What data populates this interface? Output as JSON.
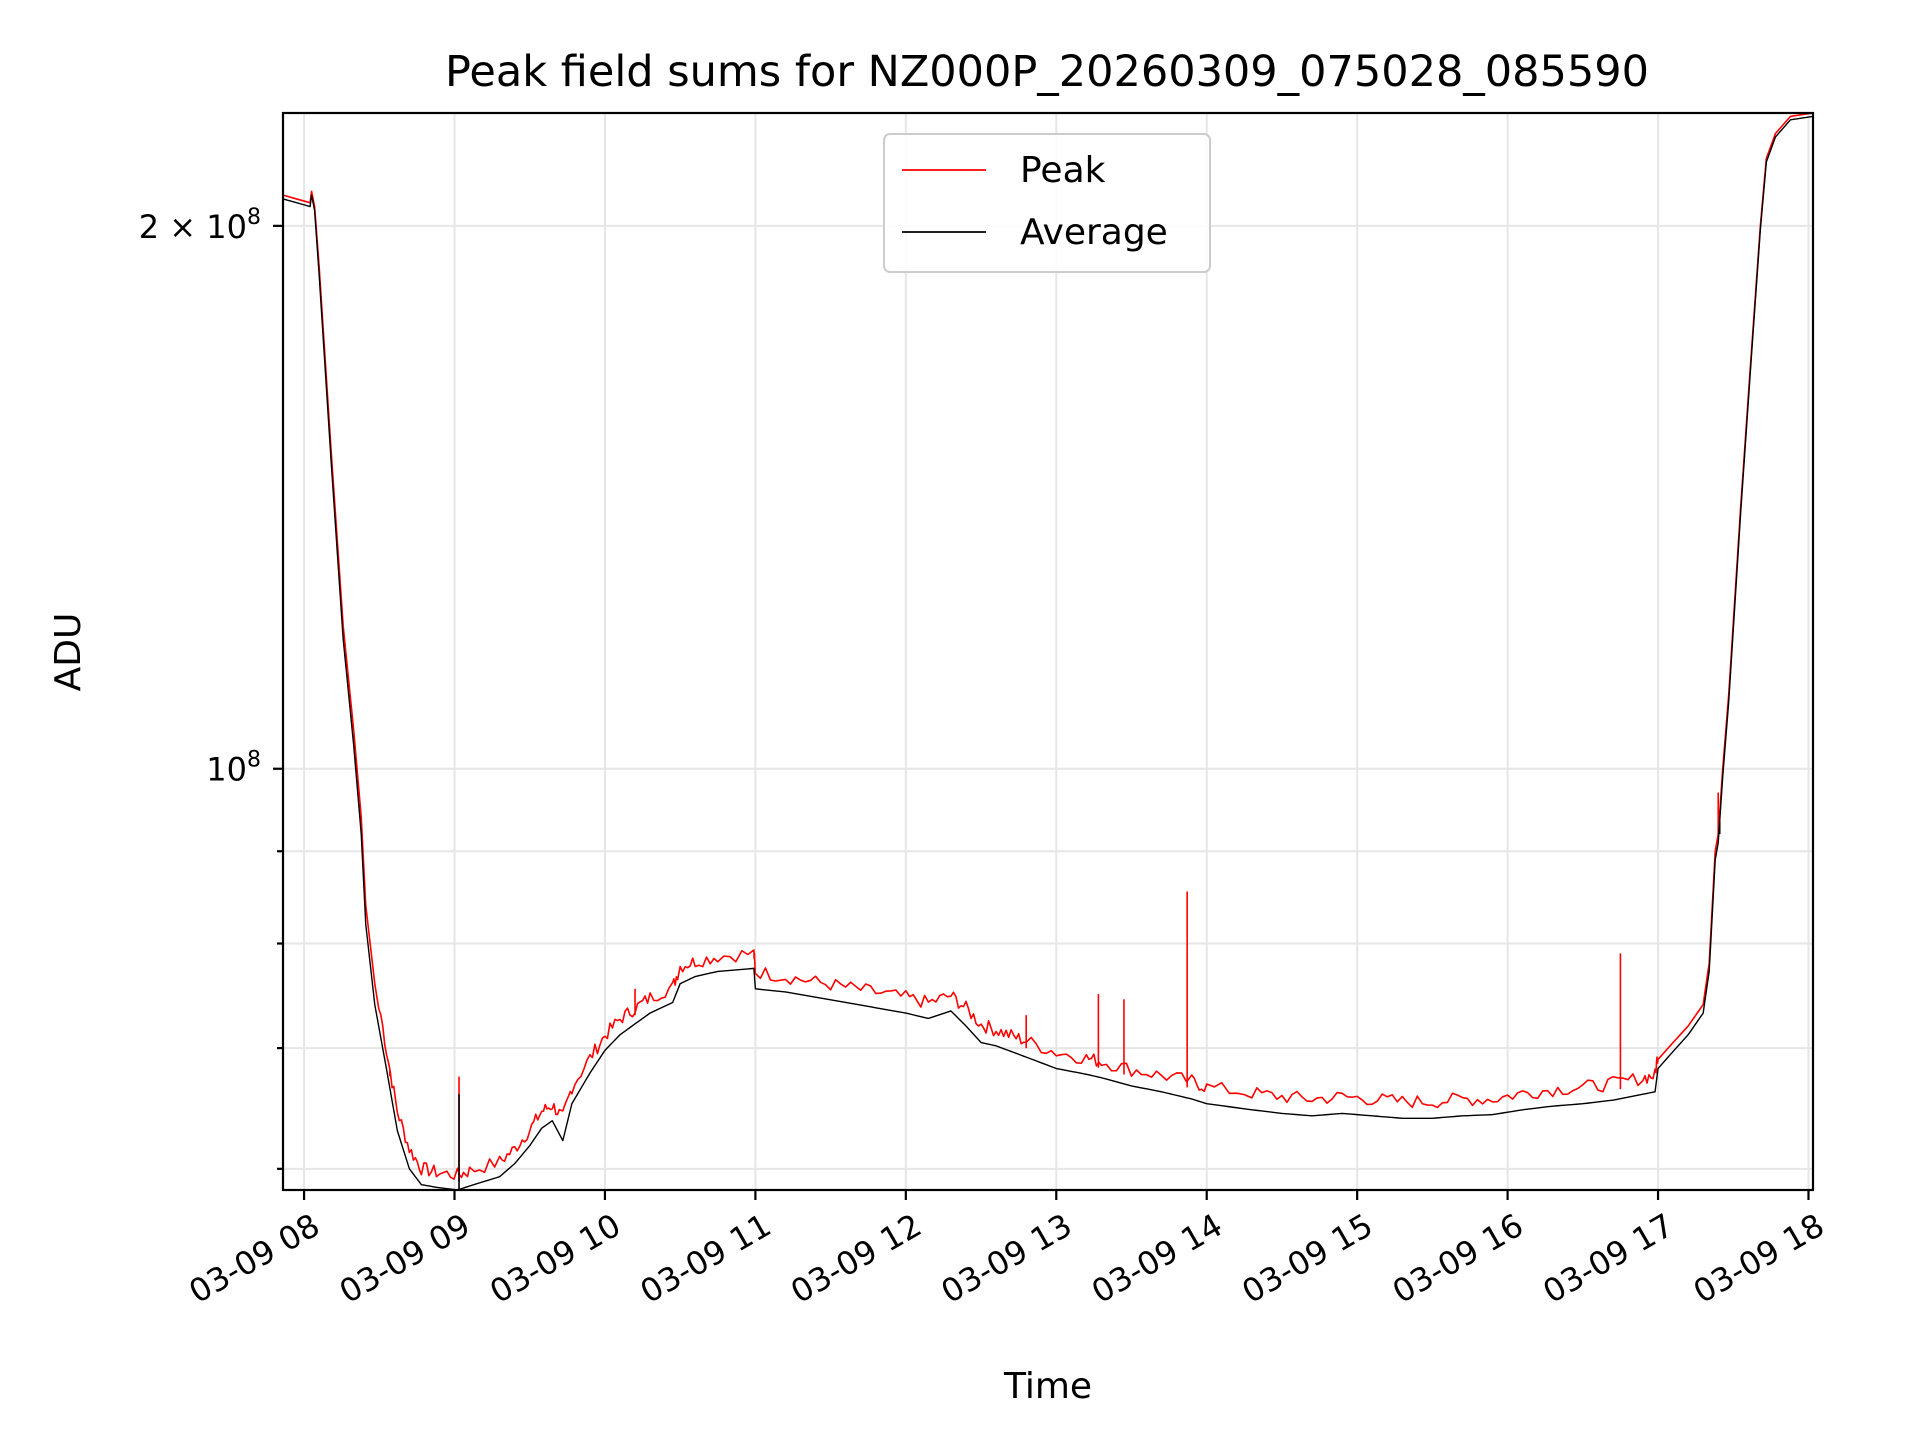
{
  "chart_data": {
    "type": "line",
    "title": "Peak field sums for NZ000P_20260309_075028_085590",
    "xlabel": "Time",
    "ylabel": "ADU",
    "y_scale": "log",
    "ylim": [
      58400000,
      231000000
    ],
    "xlim_hours": [
      7.86,
      18.03
    ],
    "x_ticks": [
      {
        "hour": 8,
        "label": "03-09 08"
      },
      {
        "hour": 9,
        "label": "03-09 09"
      },
      {
        "hour": 10,
        "label": "03-09 10"
      },
      {
        "hour": 11,
        "label": "03-09 11"
      },
      {
        "hour": 12,
        "label": "03-09 12"
      },
      {
        "hour": 13,
        "label": "03-09 13"
      },
      {
        "hour": 14,
        "label": "03-09 14"
      },
      {
        "hour": 15,
        "label": "03-09 15"
      },
      {
        "hour": 16,
        "label": "03-09 16"
      },
      {
        "hour": 17,
        "label": "03-09 17"
      },
      {
        "hour": 18,
        "label": "03-09 18"
      }
    ],
    "y_major_ticks": [
      {
        "value": 100000000,
        "base": "10",
        "exp": "8",
        "mant": ""
      },
      {
        "value": 200000000,
        "base": "10",
        "exp": "8",
        "mant": "2 × "
      }
    ],
    "y_minor_ticks": [
      60000000,
      70000000,
      80000000,
      90000000
    ],
    "legend": {
      "location": "upper center",
      "entries": [
        "Peak",
        "Average"
      ]
    },
    "series": [
      {
        "name": "Peak",
        "color": "#ff0000",
        "points": [
          [
            7.86,
            208000000
          ],
          [
            8.04,
            206000000
          ],
          [
            8.05,
            209000000
          ],
          [
            8.07,
            205000000
          ],
          [
            8.1,
            190000000
          ],
          [
            8.18,
            150000000
          ],
          [
            8.26,
            120000000
          ],
          [
            8.33,
            105000000
          ],
          [
            8.38,
            94000000
          ],
          [
            8.41,
            84000000
          ],
          [
            8.47,
            76000000
          ],
          [
            8.55,
            69000000
          ],
          [
            8.62,
            64000000
          ],
          [
            8.7,
            61000000
          ],
          [
            8.78,
            59500000
          ],
          [
            8.88,
            59200000
          ],
          [
            9.02,
            59000000
          ],
          [
            9.1,
            59300000
          ],
          [
            9.3,
            60000000
          ],
          [
            9.4,
            61000000
          ],
          [
            9.5,
            62500000
          ],
          [
            9.58,
            64000000
          ],
          [
            9.65,
            64500000
          ],
          [
            9.72,
            63500000
          ],
          [
            9.78,
            66000000
          ],
          [
            9.9,
            68500000
          ],
          [
            10.0,
            70500000
          ],
          [
            10.1,
            72000000
          ],
          [
            10.2,
            73000000
          ],
          [
            10.3,
            74000000
          ],
          [
            10.45,
            75000000
          ],
          [
            10.5,
            77000000
          ],
          [
            10.6,
            77500000
          ],
          [
            10.75,
            78000000
          ],
          [
            10.99,
            78300000
          ],
          [
            11.0,
            76500000
          ],
          [
            11.2,
            76000000
          ],
          [
            11.4,
            75500000
          ],
          [
            11.6,
            75000000
          ],
          [
            11.8,
            74500000
          ],
          [
            12.0,
            74000000
          ],
          [
            12.15,
            73500000
          ],
          [
            12.3,
            74200000
          ],
          [
            12.4,
            73000000
          ],
          [
            12.5,
            71500000
          ],
          [
            12.6,
            71000000
          ],
          [
            12.7,
            70500000
          ],
          [
            12.8,
            70000000
          ],
          [
            13.0,
            69000000
          ],
          [
            13.2,
            68500000
          ],
          [
            13.3,
            68200000
          ],
          [
            13.5,
            67500000
          ],
          [
            13.7,
            67000000
          ],
          [
            13.9,
            66500000
          ],
          [
            14.0,
            66000000
          ],
          [
            14.3,
            65500000
          ],
          [
            14.5,
            65200000
          ],
          [
            14.7,
            65000000
          ],
          [
            14.9,
            65200000
          ],
          [
            15.1,
            65000000
          ],
          [
            15.3,
            64800000
          ],
          [
            15.5,
            64800000
          ],
          [
            15.7,
            65000000
          ],
          [
            15.9,
            65000000
          ],
          [
            16.1,
            65500000
          ],
          [
            16.3,
            65800000
          ],
          [
            16.5,
            66000000
          ],
          [
            16.7,
            66300000
          ],
          [
            16.9,
            66800000
          ],
          [
            16.98,
            67000000
          ],
          [
            17.0,
            69000000
          ],
          [
            17.1,
            70500000
          ],
          [
            17.2,
            72000000
          ],
          [
            17.3,
            74000000
          ],
          [
            17.32,
            76000000
          ],
          [
            17.34,
            78000000
          ],
          [
            17.38,
            90000000
          ],
          [
            17.4,
            92000000
          ],
          [
            17.43,
            100000000
          ],
          [
            17.47,
            110000000
          ],
          [
            17.55,
            140000000
          ],
          [
            17.62,
            170000000
          ],
          [
            17.68,
            200000000
          ],
          [
            17.72,
            218000000
          ],
          [
            17.78,
            225000000
          ],
          [
            17.88,
            230000000
          ],
          [
            18.03,
            231000000
          ]
        ],
        "spikes": [
          [
            8.57,
            68000000
          ],
          [
            9.03,
            67500000
          ],
          [
            10.2,
            75500000
          ],
          [
            12.8,
            73000000
          ],
          [
            13.28,
            75000000
          ],
          [
            13.45,
            74500000
          ],
          [
            13.87,
            85500000
          ],
          [
            16.75,
            79000000
          ],
          [
            17.4,
            97000000
          ]
        ]
      },
      {
        "name": "Average",
        "color": "#000000",
        "points": [
          [
            7.86,
            207000000
          ],
          [
            8.04,
            205000000
          ],
          [
            8.05,
            208000000
          ],
          [
            8.07,
            204000000
          ],
          [
            8.1,
            188000000
          ],
          [
            8.18,
            148000000
          ],
          [
            8.26,
            118000000
          ],
          [
            8.33,
            103000000
          ],
          [
            8.38,
            92000000
          ],
          [
            8.41,
            82000000
          ],
          [
            8.47,
            74000000
          ],
          [
            8.55,
            68000000
          ],
          [
            8.62,
            63000000
          ],
          [
            8.7,
            60000000
          ],
          [
            8.78,
            58800000
          ],
          [
            8.88,
            58600000
          ],
          [
            9.02,
            58400000
          ],
          [
            9.1,
            58700000
          ],
          [
            9.3,
            59400000
          ],
          [
            9.4,
            60400000
          ],
          [
            9.5,
            61800000
          ],
          [
            9.58,
            63200000
          ],
          [
            9.65,
            63800000
          ],
          [
            9.72,
            62200000
          ],
          [
            9.78,
            65200000
          ],
          [
            9.9,
            67800000
          ],
          [
            10.0,
            69800000
          ],
          [
            10.1,
            71200000
          ],
          [
            10.2,
            72200000
          ],
          [
            10.3,
            73200000
          ],
          [
            10.45,
            74200000
          ],
          [
            10.5,
            76000000
          ],
          [
            10.6,
            76700000
          ],
          [
            10.75,
            77200000
          ],
          [
            10.99,
            77500000
          ],
          [
            11.0,
            75500000
          ],
          [
            11.2,
            75200000
          ],
          [
            11.4,
            74700000
          ],
          [
            11.6,
            74200000
          ],
          [
            11.8,
            73700000
          ],
          [
            12.0,
            73200000
          ],
          [
            12.15,
            72700000
          ],
          [
            12.3,
            73400000
          ],
          [
            12.4,
            72000000
          ],
          [
            12.5,
            70500000
          ],
          [
            12.6,
            70200000
          ],
          [
            12.7,
            69700000
          ],
          [
            12.8,
            69200000
          ],
          [
            13.0,
            68200000
          ],
          [
            13.2,
            67700000
          ],
          [
            13.3,
            67400000
          ],
          [
            13.5,
            66700000
          ],
          [
            13.7,
            66200000
          ],
          [
            13.9,
            65600000
          ],
          [
            14.0,
            65200000
          ],
          [
            14.3,
            64700000
          ],
          [
            14.5,
            64400000
          ],
          [
            14.7,
            64200000
          ],
          [
            14.9,
            64400000
          ],
          [
            15.1,
            64200000
          ],
          [
            15.3,
            64000000
          ],
          [
            15.5,
            64000000
          ],
          [
            15.7,
            64200000
          ],
          [
            15.9,
            64300000
          ],
          [
            16.1,
            64700000
          ],
          [
            16.3,
            65000000
          ],
          [
            16.5,
            65200000
          ],
          [
            16.7,
            65500000
          ],
          [
            16.9,
            66000000
          ],
          [
            16.98,
            66200000
          ],
          [
            17.0,
            68200000
          ],
          [
            17.1,
            69700000
          ],
          [
            17.2,
            71200000
          ],
          [
            17.3,
            73200000
          ],
          [
            17.32,
            75200000
          ],
          [
            17.34,
            77200000
          ],
          [
            17.38,
            89000000
          ],
          [
            17.4,
            91000000
          ],
          [
            17.43,
            99000000
          ],
          [
            17.47,
            109000000
          ],
          [
            17.55,
            139000000
          ],
          [
            17.62,
            169000000
          ],
          [
            17.68,
            199000000
          ],
          [
            17.72,
            217000000
          ],
          [
            17.78,
            224000000
          ],
          [
            17.88,
            229000000
          ],
          [
            18.03,
            230000000
          ]
        ],
        "spikes": [
          [
            9.03,
            66000000
          ],
          [
            17.41,
            92000000
          ]
        ]
      }
    ]
  }
}
